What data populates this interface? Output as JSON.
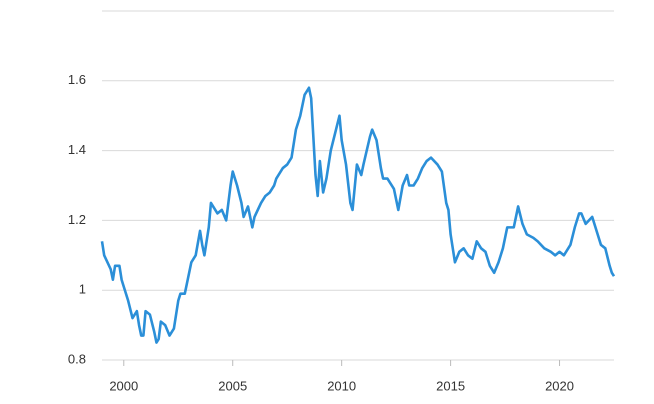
{
  "chart_data": {
    "type": "line",
    "x": [
      1999.0,
      1999.1,
      1999.4,
      1999.5,
      1999.6,
      1999.8,
      1999.9,
      2000.0,
      2000.2,
      2000.4,
      2000.6,
      2000.7,
      2000.8,
      2000.9,
      2001.0,
      2001.2,
      2001.4,
      2001.5,
      2001.6,
      2001.7,
      2001.9,
      2002.1,
      2002.3,
      2002.5,
      2002.6,
      2002.8,
      2002.9,
      2003.1,
      2003.3,
      2003.5,
      2003.6,
      2003.7,
      2003.9,
      2004.0,
      2004.3,
      2004.5,
      2004.7,
      2004.9,
      2005.0,
      2005.2,
      2005.4,
      2005.5,
      2005.7,
      2005.9,
      2006.0,
      2006.3,
      2006.5,
      2006.7,
      2006.9,
      2007.0,
      2007.3,
      2007.5,
      2007.7,
      2007.9,
      2008.1,
      2008.3,
      2008.5,
      2008.6,
      2008.8,
      2008.9,
      2009.0,
      2009.15,
      2009.3,
      2009.5,
      2009.7,
      2009.9,
      2010.0,
      2010.2,
      2010.4,
      2010.5,
      2010.7,
      2010.9,
      2011.0,
      2011.3,
      2011.4,
      2011.6,
      2011.8,
      2011.9,
      2012.1,
      2012.4,
      2012.6,
      2012.8,
      2013.0,
      2013.1,
      2013.3,
      2013.5,
      2013.7,
      2013.9,
      2014.1,
      2014.4,
      2014.6,
      2014.8,
      2014.9,
      2015.0,
      2015.2,
      2015.4,
      2015.6,
      2015.8,
      2016.0,
      2016.2,
      2016.4,
      2016.6,
      2016.8,
      2017.0,
      2017.2,
      2017.4,
      2017.6,
      2017.9,
      2018.1,
      2018.3,
      2018.5,
      2018.8,
      2019.0,
      2019.3,
      2019.6,
      2019.8,
      2020.0,
      2020.2,
      2020.5,
      2020.7,
      2020.9,
      2021.0,
      2021.2,
      2021.5,
      2021.7,
      2021.9,
      2022.1,
      2022.3,
      2022.4,
      2022.5
    ],
    "series": [
      {
        "color": "#2b8fd8",
        "values": [
          1.14,
          1.1,
          1.06,
          1.03,
          1.07,
          1.07,
          1.03,
          1.01,
          0.97,
          0.92,
          0.94,
          0.9,
          0.87,
          0.87,
          0.94,
          0.93,
          0.88,
          0.85,
          0.86,
          0.91,
          0.9,
          0.87,
          0.89,
          0.97,
          0.99,
          0.99,
          1.02,
          1.08,
          1.1,
          1.17,
          1.13,
          1.1,
          1.18,
          1.25,
          1.22,
          1.23,
          1.2,
          1.3,
          1.34,
          1.3,
          1.25,
          1.21,
          1.24,
          1.18,
          1.21,
          1.25,
          1.27,
          1.28,
          1.3,
          1.32,
          1.35,
          1.36,
          1.38,
          1.46,
          1.5,
          1.56,
          1.58,
          1.55,
          1.33,
          1.27,
          1.37,
          1.28,
          1.32,
          1.4,
          1.45,
          1.5,
          1.43,
          1.36,
          1.25,
          1.23,
          1.36,
          1.33,
          1.36,
          1.44,
          1.46,
          1.43,
          1.35,
          1.32,
          1.32,
          1.29,
          1.23,
          1.3,
          1.33,
          1.3,
          1.3,
          1.32,
          1.35,
          1.37,
          1.38,
          1.36,
          1.34,
          1.25,
          1.23,
          1.16,
          1.08,
          1.11,
          1.12,
          1.1,
          1.09,
          1.14,
          1.12,
          1.11,
          1.07,
          1.05,
          1.08,
          1.12,
          1.18,
          1.18,
          1.24,
          1.19,
          1.16,
          1.15,
          1.14,
          1.12,
          1.11,
          1.1,
          1.11,
          1.1,
          1.13,
          1.18,
          1.22,
          1.22,
          1.19,
          1.21,
          1.17,
          1.13,
          1.12,
          1.07,
          1.05,
          1.04
        ]
      }
    ],
    "xlim": [
      1999.0,
      2022.5
    ],
    "xticks": [
      2000,
      2005,
      2010,
      2015,
      2020
    ],
    "ylim": [
      0.8,
      1.8
    ],
    "yticks": [
      0.8,
      1,
      1.2,
      1.4,
      1.6
    ],
    "grid": true
  }
}
